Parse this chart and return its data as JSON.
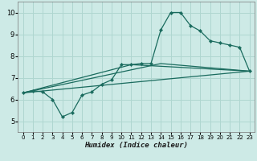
{
  "xlabel": "Humidex (Indice chaleur)",
  "xlim": [
    -0.5,
    23.5
  ],
  "ylim": [
    4.5,
    10.5
  ],
  "xticks": [
    0,
    1,
    2,
    3,
    4,
    5,
    6,
    7,
    8,
    9,
    10,
    11,
    12,
    13,
    14,
    15,
    16,
    17,
    18,
    19,
    20,
    21,
    22,
    23
  ],
  "yticks": [
    5,
    6,
    7,
    8,
    9,
    10
  ],
  "background_color": "#cdeae6",
  "grid_color": "#afd6d0",
  "line_color": "#1a6b5e",
  "main_line": {
    "x": [
      0,
      1,
      2,
      3,
      4,
      5,
      6,
      7,
      8,
      9,
      10,
      11,
      12,
      13,
      14,
      15,
      16,
      17,
      18,
      19,
      20,
      21,
      22,
      23
    ],
    "y": [
      6.3,
      6.4,
      6.35,
      6.0,
      5.2,
      5.4,
      6.2,
      6.35,
      6.7,
      6.9,
      7.6,
      7.6,
      7.65,
      7.65,
      9.2,
      10.0,
      10.0,
      9.4,
      9.15,
      8.7,
      8.6,
      8.5,
      8.4,
      7.3
    ]
  },
  "straight_line": {
    "x": [
      0,
      23
    ],
    "y": [
      6.3,
      7.3
    ]
  },
  "trend_line1": {
    "x": [
      0,
      14,
      23
    ],
    "y": [
      6.3,
      7.65,
      7.3
    ]
  },
  "trend_line2": {
    "x": [
      0,
      11,
      23
    ],
    "y": [
      6.3,
      7.6,
      7.3
    ]
  }
}
